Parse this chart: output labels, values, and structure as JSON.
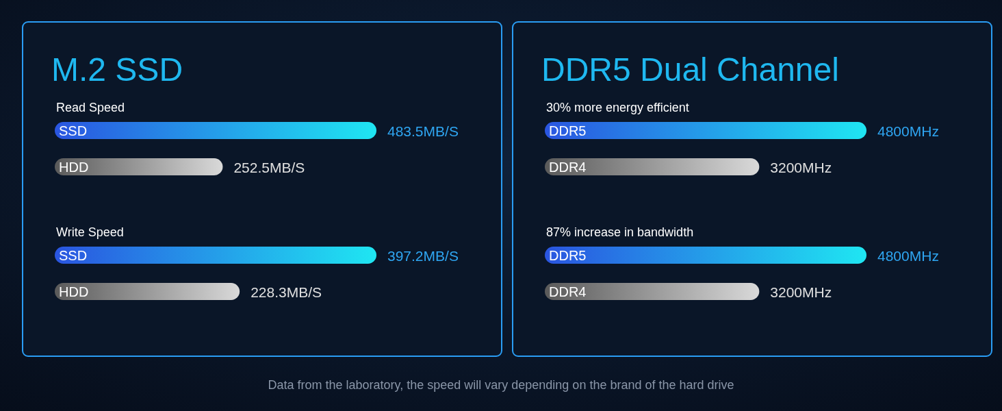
{
  "chart_data": [
    {
      "type": "bar",
      "orientation": "horizontal",
      "title": "M.2 SSD",
      "subtitle": "Read Speed",
      "categories": [
        "SSD",
        "HDD"
      ],
      "values": [
        483.5,
        252.5
      ],
      "colors": [
        "#1fe6f2",
        "#d9d9d9"
      ],
      "value_labels": [
        "483.5MB/S",
        "252.5MB/S"
      ]
    },
    {
      "type": "bar",
      "orientation": "horizontal",
      "subtitle": "Write Speed",
      "categories": [
        "SSD",
        "HDD"
      ],
      "values": [
        397.2,
        228.3
      ],
      "colors": [
        "#1fe6f2",
        "#d9d9d9"
      ],
      "value_labels": [
        "397.2MB/S",
        "228.3MB/S"
      ]
    },
    {
      "type": "bar",
      "orientation": "horizontal",
      "title": "DDR5 Dual Channel",
      "subtitle": "30% more energy efficient",
      "categories": [
        "DDR5",
        "DDR4"
      ],
      "values": [
        4800,
        3200
      ],
      "colors": [
        "#1fe6f2",
        "#d9d9d9"
      ],
      "value_labels": [
        "4800MHz",
        "3200MHz"
      ]
    },
    {
      "type": "bar",
      "orientation": "horizontal",
      "subtitle": "87% increase in bandwidth",
      "categories": [
        "DDR5",
        "DDR4"
      ],
      "values": [
        4800,
        3200
      ],
      "colors": [
        "#1fe6f2",
        "#d9d9d9"
      ],
      "value_labels": [
        "4800MHz",
        "3200MHz"
      ],
      "annotations": [
        "Data from the laboratory, the speed will vary depending on the brand of the hard drive"
      ]
    }
  ]
}
